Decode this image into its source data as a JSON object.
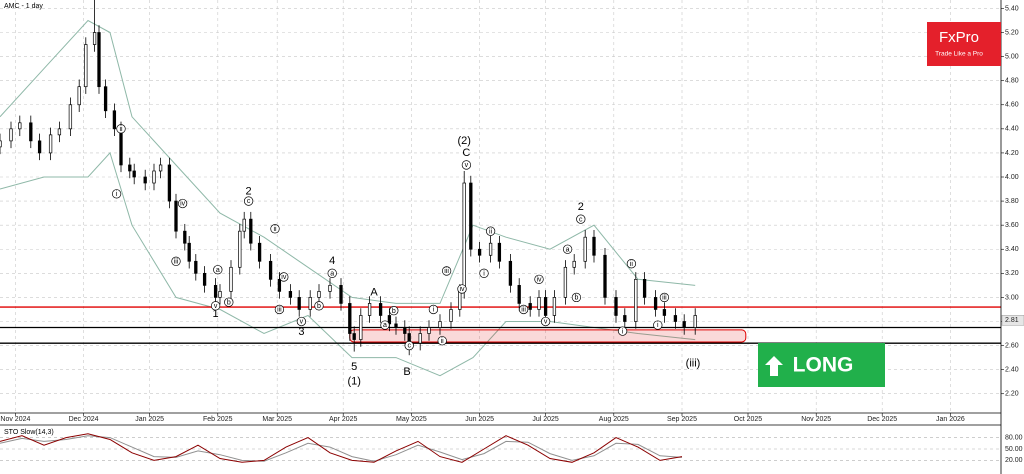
{
  "chart_data": {
    "type": "candlestick",
    "title": "AMC - 1 day",
    "x": [
      0,
      5,
      9,
      14,
      18,
      23,
      27,
      32,
      36,
      39,
      43,
      45,
      48,
      52,
      55,
      59,
      61,
      66,
      70,
      73,
      77,
      80,
      84,
      86,
      89,
      93,
      98,
      100,
      105,
      109,
      111,
      114,
      118,
      123,
      127,
      132,
      136,
      141,
      145,
      150,
      155,
      159,
      161,
      164,
      168,
      173,
      177,
      180,
      184,
      186,
      191,
      195,
      200,
      205,
      209,
      211,
      214,
      218,
      223,
      227,
      232,
      236,
      241,
      245,
      248,
      252,
      257,
      261,
      266,
      270,
      275,
      280,
      284,
      289,
      293,
      298,
      302,
      307,
      311,
      316
    ],
    "open": [
      4.25,
      4.3,
      4.4,
      4.45,
      4.3,
      4.2,
      4.35,
      4.4,
      4.6,
      4.75,
      5.1,
      5.2,
      4.75,
      4.55,
      4.4,
      4.1,
      4.05,
      4.0,
      3.95,
      4.05,
      4.1,
      3.8,
      3.55,
      3.45,
      3.3,
      3.2,
      3.1,
      3.0,
      3.05,
      3.25,
      3.55,
      3.65,
      3.45,
      3.3,
      3.15,
      3.05,
      3.0,
      2.9,
      3.0,
      3.05,
      3.1,
      2.95,
      2.7,
      2.65,
      2.85,
      2.95,
      2.85,
      2.78,
      2.75,
      2.7,
      2.62,
      2.7,
      2.75,
      2.8,
      2.9,
      3.05,
      3.95,
      3.4,
      3.35,
      3.45,
      3.3,
      3.1,
      2.95,
      2.9,
      3.0,
      2.85,
      3.0,
      3.25,
      3.3,
      3.5,
      3.35,
      3.0,
      2.85,
      2.8,
      3.15,
      3.0,
      2.9,
      2.85,
      2.8,
      2.75
    ],
    "high": [
      4.36,
      4.46,
      4.51,
      4.51,
      4.36,
      4.41,
      4.46,
      4.66,
      4.81,
      5.16,
      5.47,
      5.26,
      4.81,
      4.61,
      4.46,
      4.16,
      4.11,
      4.06,
      4.11,
      4.16,
      4.16,
      3.86,
      3.61,
      3.51,
      3.36,
      3.26,
      3.16,
      3.11,
      3.31,
      3.61,
      3.71,
      3.71,
      3.51,
      3.36,
      3.21,
      3.11,
      3.06,
      3.06,
      3.11,
      3.16,
      3.16,
      3.01,
      2.76,
      2.91,
      3.01,
      3.01,
      2.91,
      2.84,
      2.81,
      2.76,
      2.76,
      2.81,
      2.86,
      2.96,
      3.11,
      4.05,
      4.01,
      3.46,
      3.51,
      3.51,
      3.36,
      3.16,
      3.01,
      3.06,
      3.06,
      3.06,
      3.31,
      3.36,
      3.56,
      3.56,
      3.41,
      3.06,
      2.91,
      3.21,
      3.21,
      3.06,
      2.96,
      2.91,
      2.86,
      2.91
    ],
    "low": [
      4.19,
      4.24,
      4.34,
      4.24,
      4.14,
      4.14,
      4.29,
      4.34,
      4.54,
      4.69,
      5.04,
      4.69,
      4.49,
      4.34,
      4.04,
      3.99,
      3.94,
      3.89,
      3.89,
      3.99,
      3.74,
      3.49,
      3.39,
      3.24,
      3.14,
      3.04,
      2.94,
      2.94,
      2.99,
      3.19,
      3.49,
      3.39,
      3.24,
      3.09,
      2.99,
      2.94,
      2.84,
      2.84,
      2.94,
      2.99,
      2.89,
      2.64,
      2.55,
      2.59,
      2.79,
      2.79,
      2.72,
      2.69,
      2.64,
      2.52,
      2.56,
      2.64,
      2.69,
      2.74,
      2.84,
      2.99,
      3.34,
      3.29,
      3.29,
      3.24,
      3.04,
      2.89,
      2.84,
      2.84,
      2.79,
      2.79,
      2.94,
      3.19,
      3.24,
      3.29,
      2.94,
      2.79,
      2.74,
      2.74,
      2.94,
      2.84,
      2.79,
      2.74,
      2.69,
      2.69
    ],
    "close": [
      4.3,
      4.4,
      4.45,
      4.3,
      4.2,
      4.35,
      4.4,
      4.6,
      4.75,
      5.1,
      5.2,
      4.75,
      4.55,
      4.4,
      4.1,
      4.05,
      4.0,
      3.95,
      4.05,
      4.1,
      3.8,
      3.55,
      3.45,
      3.3,
      3.2,
      3.1,
      3.0,
      3.05,
      3.25,
      3.55,
      3.65,
      3.45,
      3.3,
      3.15,
      3.05,
      3.0,
      2.9,
      3.0,
      3.05,
      3.1,
      2.95,
      2.7,
      2.65,
      2.85,
      2.95,
      2.85,
      2.78,
      2.75,
      2.7,
      2.62,
      2.7,
      2.75,
      2.8,
      2.9,
      3.05,
      3.95,
      3.4,
      3.35,
      3.45,
      3.3,
      3.1,
      2.95,
      2.9,
      3.0,
      2.85,
      3.0,
      3.25,
      3.3,
      3.5,
      3.35,
      3.0,
      2.85,
      2.8,
      3.15,
      3.0,
      2.9,
      2.85,
      2.8,
      2.75,
      2.85
    ],
    "up_color": "#ffffff",
    "down_color": "#000000",
    "xlim": [
      0,
      455
    ],
    "ylim": [
      2.04,
      5.47
    ],
    "xticks": [
      {
        "value": 7,
        "label": "Nov 2024"
      },
      {
        "value": 38,
        "label": "Dec 2024"
      },
      {
        "value": 68,
        "label": "Jan 2025"
      },
      {
        "value": 99,
        "label": "Feb 2025"
      },
      {
        "value": 126,
        "label": "Mar 2025"
      },
      {
        "value": 156,
        "label": "Apr 2025"
      },
      {
        "value": 187,
        "label": "May 2025"
      },
      {
        "value": 218,
        "label": "Jun 2025"
      },
      {
        "value": 248,
        "label": "Jul 2025"
      },
      {
        "value": 279,
        "label": "Aug 2025"
      },
      {
        "value": 310,
        "label": "Sep 2025"
      },
      {
        "value": 340,
        "label": "Oct 2025"
      },
      {
        "value": 371,
        "label": "Nov 2025"
      },
      {
        "value": 401,
        "label": "Dec 2025"
      },
      {
        "value": 432,
        "label": "Jan 2026"
      }
    ],
    "yticks": [
      {
        "value": 2.2,
        "label": "2.20"
      },
      {
        "value": 2.4,
        "label": "2.40"
      },
      {
        "value": 2.6,
        "label": "2.60"
      },
      {
        "value": 2.8,
        "label": "2.80"
      },
      {
        "value": 3.0,
        "label": "3.00"
      },
      {
        "value": 3.2,
        "label": "3.20"
      },
      {
        "value": 3.4,
        "label": "3.40"
      },
      {
        "value": 3.6,
        "label": "3.60"
      },
      {
        "value": 3.8,
        "label": "3.80"
      },
      {
        "value": 4.0,
        "label": "4.00"
      },
      {
        "value": 4.2,
        "label": "4.20"
      },
      {
        "value": 4.4,
        "label": "4.40"
      },
      {
        "value": 4.6,
        "label": "4.60"
      },
      {
        "value": 4.8,
        "label": "4.80"
      },
      {
        "value": 5.0,
        "label": "5.00"
      },
      {
        "value": 5.2,
        "label": "5.20"
      },
      {
        "value": 5.4,
        "label": "5.40"
      }
    ],
    "grid": true,
    "price_label": {
      "value": 2.81,
      "label": "2.81"
    },
    "levels": [
      {
        "value": 2.92,
        "color": "#e00000"
      },
      {
        "value": 2.75,
        "color": "#000000"
      },
      {
        "value": 2.62,
        "color": "#000000"
      }
    ],
    "zone": {
      "x": [
        159,
        339
      ],
      "y": [
        2.63,
        2.73
      ],
      "color": "#e00000"
    },
    "bands": {
      "color": "#8fb8a8",
      "upper": {
        "x": [
          0,
          20,
          40,
          50,
          60,
          80,
          100,
          120,
          140,
          160,
          180,
          200,
          215,
          230,
          250,
          270,
          290,
          316
        ],
        "values": [
          4.5,
          4.9,
          5.3,
          5.2,
          4.5,
          4.1,
          3.7,
          3.5,
          3.25,
          3.0,
          2.95,
          2.95,
          3.6,
          3.5,
          3.4,
          3.6,
          3.15,
          3.1
        ]
      },
      "lower": {
        "x": [
          0,
          20,
          40,
          50,
          60,
          80,
          100,
          120,
          140,
          160,
          180,
          200,
          215,
          230,
          250,
          270,
          290,
          316
        ],
        "values": [
          3.9,
          4.0,
          4.0,
          4.2,
          3.6,
          3.0,
          2.9,
          2.7,
          2.85,
          2.5,
          2.5,
          2.35,
          2.5,
          2.8,
          2.8,
          2.75,
          2.7,
          2.65
        ]
      }
    },
    "annotations": [
      {
        "text": "2",
        "x": 113,
        "y": 3.88,
        "circled": false
      },
      {
        "text": "1",
        "x": 98,
        "y": 2.86,
        "circled": false
      },
      {
        "text": "3",
        "x": 137,
        "y": 2.71,
        "circled": false
      },
      {
        "text": "4",
        "x": 151,
        "y": 3.3,
        "circled": false
      },
      {
        "text": "5",
        "x": 161,
        "y": 2.42,
        "circled": false
      },
      {
        "text": "(1)",
        "x": 161,
        "y": 2.3,
        "circled": false
      },
      {
        "text": "A",
        "x": 170,
        "y": 3.04,
        "circled": false
      },
      {
        "text": "B",
        "x": 185,
        "y": 2.38,
        "circled": false
      },
      {
        "text": "(2)",
        "x": 211,
        "y": 4.3,
        "circled": false
      },
      {
        "text": "C",
        "x": 212,
        "y": 4.2,
        "circled": false
      },
      {
        "text": "2",
        "x": 264,
        "y": 3.75,
        "circled": false
      },
      {
        "text": "(iii)",
        "x": 315,
        "y": 2.45,
        "circled": false
      },
      {
        "text": "i",
        "x": 53,
        "y": 3.86,
        "circled": true
      },
      {
        "text": "ii",
        "x": 55,
        "y": 4.4,
        "circled": true
      },
      {
        "text": "iii",
        "x": 80,
        "y": 3.3,
        "circled": true
      },
      {
        "text": "iv",
        "x": 83,
        "y": 3.78,
        "circled": true
      },
      {
        "text": "v",
        "x": 98,
        "y": 2.93,
        "circled": true
      },
      {
        "text": "a",
        "x": 99,
        "y": 3.23,
        "circled": true
      },
      {
        "text": "b",
        "x": 104,
        "y": 2.96,
        "circled": true
      },
      {
        "text": "c",
        "x": 113,
        "y": 3.8,
        "circled": true
      },
      {
        "text": "ii",
        "x": 125,
        "y": 3.57,
        "circled": true
      },
      {
        "text": "iii",
        "x": 127,
        "y": 2.9,
        "circled": true
      },
      {
        "text": "iv",
        "x": 129,
        "y": 3.17,
        "circled": true
      },
      {
        "text": "v",
        "x": 137,
        "y": 2.8,
        "circled": true
      },
      {
        "text": "b",
        "x": 145,
        "y": 2.93,
        "circled": true
      },
      {
        "text": "a",
        "x": 151,
        "y": 3.2,
        "circled": true
      },
      {
        "text": "a",
        "x": 175,
        "y": 2.77,
        "circled": true
      },
      {
        "text": "b",
        "x": 179,
        "y": 2.89,
        "circled": true
      },
      {
        "text": "c",
        "x": 186,
        "y": 2.6,
        "circled": true
      },
      {
        "text": "i",
        "x": 197,
        "y": 2.9,
        "circled": true
      },
      {
        "text": "ii",
        "x": 201,
        "y": 2.64,
        "circled": true
      },
      {
        "text": "iii",
        "x": 203,
        "y": 3.22,
        "circled": true
      },
      {
        "text": "iv",
        "x": 210,
        "y": 3.07,
        "circled": true
      },
      {
        "text": "v",
        "x": 212,
        "y": 4.1,
        "circled": true
      },
      {
        "text": "i",
        "x": 220,
        "y": 3.2,
        "circled": true
      },
      {
        "text": "ii",
        "x": 223,
        "y": 3.55,
        "circled": true
      },
      {
        "text": "iii",
        "x": 238,
        "y": 2.9,
        "circled": true
      },
      {
        "text": "iv",
        "x": 245,
        "y": 3.15,
        "circled": true
      },
      {
        "text": "v",
        "x": 248,
        "y": 2.8,
        "circled": true
      },
      {
        "text": "a",
        "x": 258,
        "y": 3.4,
        "circled": true
      },
      {
        "text": "b",
        "x": 262,
        "y": 3.0,
        "circled": true
      },
      {
        "text": "c",
        "x": 264,
        "y": 3.65,
        "circled": true
      },
      {
        "text": "i",
        "x": 283,
        "y": 2.72,
        "circled": true
      },
      {
        "text": "ii",
        "x": 287,
        "y": 3.28,
        "circled": true
      },
      {
        "text": "i",
        "x": 299,
        "y": 2.77,
        "circled": true
      },
      {
        "text": "iii",
        "x": 302,
        "y": 3.0,
        "circled": true
      }
    ],
    "stochastic": {
      "title": "STO Slow(14,3)",
      "ylim": [
        0,
        100
      ],
      "yticks": [
        {
          "value": 80,
          "label": "80.00"
        },
        {
          "value": 50,
          "label": "50.00"
        },
        {
          "value": 20,
          "label": "20.00"
        }
      ],
      "x": [
        0,
        10,
        20,
        30,
        40,
        50,
        60,
        70,
        80,
        90,
        100,
        110,
        120,
        130,
        140,
        150,
        160,
        170,
        180,
        190,
        200,
        210,
        220,
        230,
        240,
        250,
        260,
        270,
        280,
        290,
        300,
        310
      ],
      "k": {
        "color": "#8b0000",
        "values": [
          70,
          85,
          60,
          80,
          90,
          75,
          40,
          20,
          30,
          60,
          25,
          15,
          20,
          55,
          80,
          40,
          20,
          15,
          45,
          70,
          30,
          15,
          50,
          85,
          60,
          25,
          15,
          40,
          80,
          55,
          20,
          30
        ]
      },
      "d": {
        "color": "#909090",
        "values": [
          65,
          78,
          70,
          75,
          85,
          80,
          55,
          30,
          28,
          45,
          35,
          20,
          18,
          40,
          65,
          55,
          30,
          18,
          35,
          60,
          42,
          22,
          38,
          70,
          68,
          38,
          20,
          32,
          65,
          62,
          32,
          28
        ]
      }
    }
  },
  "logo": {
    "brand": "FxPro",
    "tagline": "Trade Like a Pro"
  },
  "signal": {
    "label": "LONG"
  }
}
